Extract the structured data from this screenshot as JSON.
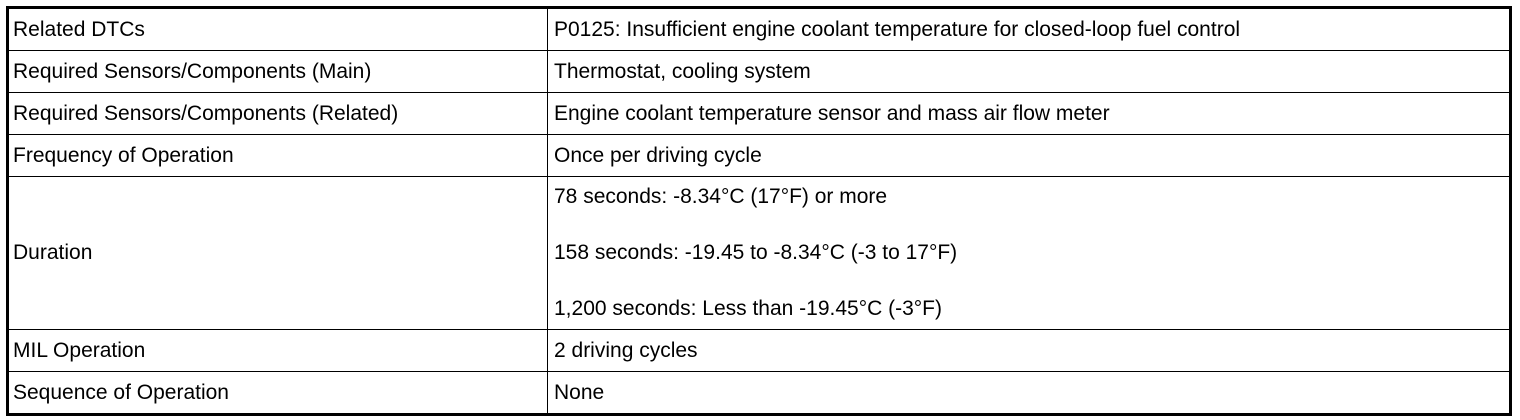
{
  "table": {
    "rows": [
      [
        "Related DTCs",
        "P0125: Insufficient engine coolant temperature for closed-loop fuel control"
      ],
      [
        "Required Sensors/Components (Main)",
        "Thermostat, cooling system"
      ],
      [
        "Required Sensors/Components (Related)",
        "Engine coolant temperature sensor and mass air flow meter"
      ],
      [
        "Frequency of Operation",
        "Once per driving cycle"
      ],
      [
        "Duration",
        [
          "78 seconds: -8.34°C (17°F) or more",
          "158 seconds: -19.45 to -8.34°C (-3 to 17°F)",
          "1,200 seconds: Less than -19.45°C (-3°F)"
        ]
      ],
      [
        "MIL Operation",
        "2 driving cycles"
      ],
      [
        "Sequence of Operation",
        "None"
      ]
    ]
  }
}
